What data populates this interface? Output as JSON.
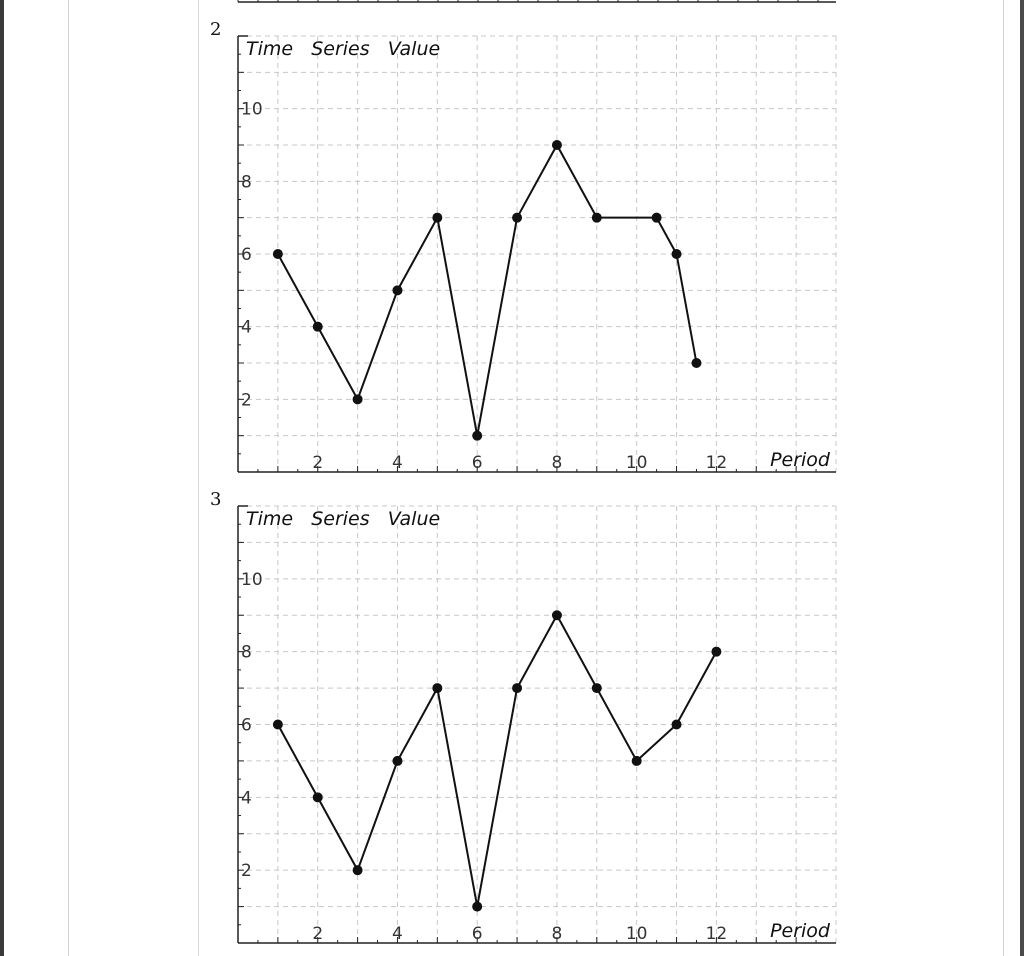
{
  "charts": [
    {
      "label": "2",
      "chart_data": {
        "type": "line",
        "x": [
          1,
          2,
          3,
          4,
          5,
          6,
          7,
          8,
          9,
          10.5,
          11,
          11.5
        ],
        "series": [
          {
            "values": [
              6,
              4,
              2,
              5,
              7,
              1,
              7,
              9,
              7,
              7,
              6,
              3
            ]
          }
        ],
        "ylabel": "Time   Series   Value",
        "xlabel": "Period",
        "xticks": [
          "2",
          "4",
          "6",
          "8",
          "10",
          "12"
        ],
        "yticks": [
          "2",
          "4",
          "6",
          "8",
          "10"
        ],
        "xlim": [
          0,
          15
        ],
        "ylim": [
          0,
          12
        ],
        "grid": true
      }
    },
    {
      "label": "3",
      "chart_data": {
        "type": "line",
        "x": [
          1,
          2,
          3,
          4,
          5,
          6,
          7,
          8,
          9,
          10,
          11,
          12
        ],
        "series": [
          {
            "values": [
              6,
              4,
              2,
              5,
              7,
              1,
              7,
              9,
              7,
              5,
              6,
              8
            ]
          }
        ],
        "ylabel": "Time   Series   Value",
        "xlabel": "Period",
        "xticks": [
          "2",
          "4",
          "6",
          "8",
          "10",
          "12"
        ],
        "yticks": [
          "2",
          "4",
          "6",
          "8",
          "10"
        ],
        "xlim": [
          0,
          15
        ],
        "ylim": [
          0,
          12
        ],
        "grid": true
      }
    }
  ],
  "colors": {
    "line": "#111111",
    "grid": "#c8c8c8",
    "axis": "#222222"
  }
}
